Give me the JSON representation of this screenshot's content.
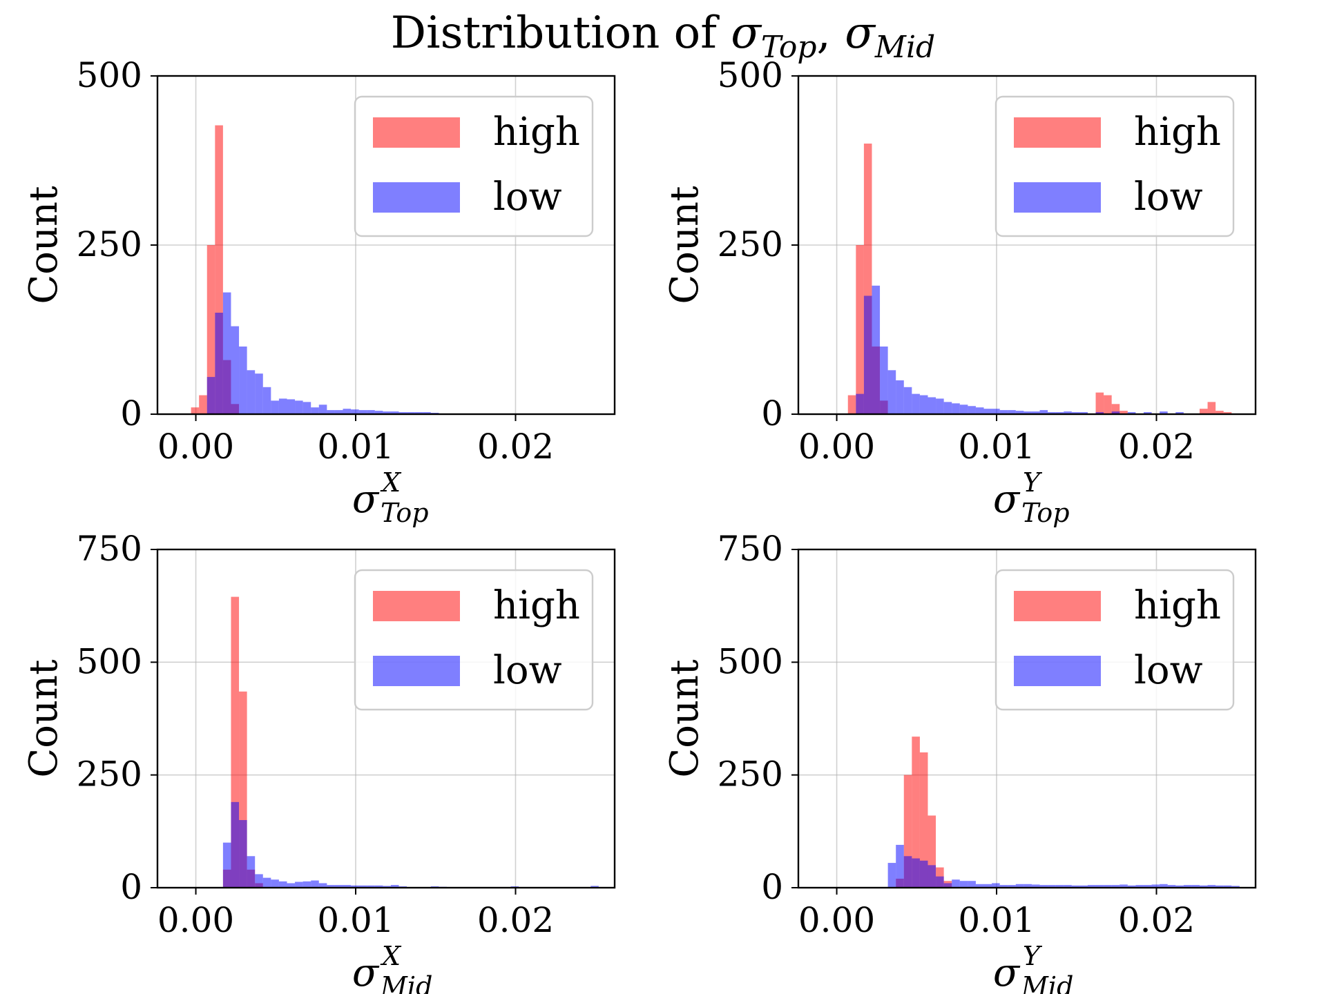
{
  "title": {
    "prefix": "Distribution of ",
    "sym1": "σ",
    "sub1": "Top",
    "sep": ", ",
    "sym2": "σ",
    "sub2": "Mid"
  },
  "colors": {
    "high": "#ff0000",
    "low": "#0000ff",
    "alpha": 0.5,
    "grid": "#b0b0b0"
  },
  "chart_data": [
    {
      "type": "bar",
      "xlabel": {
        "sym": "σ",
        "sup": "X",
        "sub": "Top"
      },
      "ylabel": "Count",
      "xlim": [
        -0.0024,
        0.0262
      ],
      "ylim": [
        0,
        500
      ],
      "xticks": [
        0.0,
        0.01,
        0.02
      ],
      "xtick_labels": [
        "0.00",
        "0.01",
        "0.02"
      ],
      "yticks": [
        0,
        250,
        500
      ],
      "ytick_labels": [
        "0",
        "250",
        "500"
      ],
      "grid": true,
      "legend": {
        "placement": "top-right",
        "entries": [
          "high",
          "low"
        ]
      },
      "bin_width": 0.0005,
      "series": [
        {
          "name": "high",
          "x": [
            -0.0003,
            0.0002,
            0.0007,
            0.0012,
            0.0017,
            0.0022
          ],
          "values": [
            10,
            28,
            250,
            427,
            80,
            15
          ]
        },
        {
          "name": "low",
          "x": [
            0.0007,
            0.0012,
            0.0017,
            0.0022,
            0.0027,
            0.0032,
            0.0037,
            0.0042,
            0.0047,
            0.0052,
            0.0057,
            0.0062,
            0.0067,
            0.0072,
            0.0077,
            0.0082,
            0.0087,
            0.0092,
            0.0097,
            0.0102,
            0.0107,
            0.0112,
            0.0117,
            0.0122,
            0.0127,
            0.0132,
            0.0137,
            0.0142,
            0.0147
          ],
          "values": [
            55,
            150,
            180,
            130,
            100,
            65,
            60,
            40,
            20,
            23,
            22,
            20,
            18,
            10,
            14,
            6,
            6,
            8,
            7,
            6,
            6,
            5,
            4,
            4,
            3,
            3,
            3,
            3,
            2
          ]
        }
      ]
    },
    {
      "type": "bar",
      "xlabel": {
        "sym": "σ",
        "sup": "Y",
        "sub": "Top"
      },
      "ylabel": "Count",
      "xlim": [
        -0.0024,
        0.0262
      ],
      "ylim": [
        0,
        500
      ],
      "xticks": [
        0.0,
        0.01,
        0.02
      ],
      "xtick_labels": [
        "0.00",
        "0.01",
        "0.02"
      ],
      "yticks": [
        0,
        250,
        500
      ],
      "ytick_labels": [
        "0",
        "250",
        "500"
      ],
      "grid": true,
      "legend": {
        "placement": "top-right",
        "entries": [
          "high",
          "low"
        ]
      },
      "bin_width": 0.0005,
      "series": [
        {
          "name": "high",
          "x": [
            0.0007,
            0.0012,
            0.0017,
            0.0022,
            0.0027,
            0.0162,
            0.0167,
            0.0172,
            0.0177,
            0.0227,
            0.0232,
            0.0237,
            0.0242
          ],
          "values": [
            28,
            250,
            400,
            100,
            20,
            32,
            28,
            15,
            5,
            8,
            18,
            5,
            3
          ]
        },
        {
          "name": "low",
          "x": [
            0.0012,
            0.0017,
            0.0022,
            0.0027,
            0.0032,
            0.0037,
            0.0042,
            0.0047,
            0.0052,
            0.0057,
            0.0062,
            0.0067,
            0.0072,
            0.0077,
            0.0082,
            0.0087,
            0.0092,
            0.0097,
            0.0102,
            0.0107,
            0.0112,
            0.0117,
            0.0122,
            0.0127,
            0.0132,
            0.0137,
            0.0142,
            0.0147,
            0.0152,
            0.0162,
            0.0172,
            0.0182,
            0.0192,
            0.0202,
            0.0212
          ],
          "values": [
            30,
            175,
            190,
            100,
            65,
            50,
            40,
            30,
            28,
            25,
            23,
            18,
            16,
            14,
            12,
            10,
            8,
            8,
            6,
            6,
            5,
            4,
            4,
            6,
            3,
            3,
            4,
            3,
            3,
            3,
            4,
            3,
            3,
            4,
            3
          ]
        }
      ]
    },
    {
      "type": "bar",
      "xlabel": {
        "sym": "σ",
        "sup": "X",
        "sub": "Mid"
      },
      "ylabel": "Count",
      "xlim": [
        -0.0024,
        0.0262
      ],
      "ylim": [
        0,
        750
      ],
      "xticks": [
        0.0,
        0.01,
        0.02
      ],
      "xtick_labels": [
        "0.00",
        "0.01",
        "0.02"
      ],
      "yticks": [
        0,
        250,
        500,
        750
      ],
      "ytick_labels": [
        "0",
        "250",
        "500",
        "750"
      ],
      "grid": true,
      "legend": {
        "placement": "top-right",
        "entries": [
          "high",
          "low"
        ]
      },
      "bin_width": 0.0005,
      "series": [
        {
          "name": "high",
          "x": [
            0.0017,
            0.0022,
            0.0027,
            0.0032,
            0.0037
          ],
          "values": [
            40,
            645,
            435,
            40,
            10
          ]
        },
        {
          "name": "low",
          "x": [
            0.0017,
            0.0022,
            0.0027,
            0.0032,
            0.0037,
            0.0042,
            0.0047,
            0.0052,
            0.0057,
            0.0062,
            0.0067,
            0.0072,
            0.0077,
            0.0082,
            0.0087,
            0.0092,
            0.0097,
            0.0102,
            0.0107,
            0.0112,
            0.0117,
            0.0122,
            0.0127,
            0.0147,
            0.0152,
            0.0197,
            0.0247
          ],
          "values": [
            100,
            190,
            150,
            70,
            30,
            22,
            18,
            14,
            10,
            13,
            14,
            16,
            10,
            6,
            6,
            6,
            5,
            5,
            5,
            5,
            4,
            6,
            3,
            3,
            2,
            3,
            4
          ]
        }
      ]
    },
    {
      "type": "bar",
      "xlabel": {
        "sym": "σ",
        "sup": "Y",
        "sub": "Mid"
      },
      "ylabel": "Count",
      "xlim": [
        -0.0024,
        0.0262
      ],
      "ylim": [
        0,
        750
      ],
      "xticks": [
        0.0,
        0.01,
        0.02
      ],
      "xtick_labels": [
        "0.00",
        "0.01",
        "0.02"
      ],
      "yticks": [
        0,
        250,
        500,
        750
      ],
      "ytick_labels": [
        "0",
        "250",
        "500",
        "750"
      ],
      "grid": true,
      "legend": {
        "placement": "top-right",
        "entries": [
          "high",
          "low"
        ]
      },
      "bin_width": 0.0005,
      "series": [
        {
          "name": "high",
          "x": [
            0.0037,
            0.0042,
            0.0047,
            0.0052,
            0.0057,
            0.0062,
            0.0067
          ],
          "values": [
            20,
            250,
            335,
            300,
            160,
            45,
            15
          ]
        },
        {
          "name": "low",
          "x": [
            0.0032,
            0.0037,
            0.0042,
            0.0047,
            0.0052,
            0.0057,
            0.0062,
            0.0067,
            0.0072,
            0.0077,
            0.0082,
            0.0087,
            0.0092,
            0.0097,
            0.0102,
            0.0107,
            0.0112,
            0.0117,
            0.0122,
            0.0127,
            0.0132,
            0.0137,
            0.0142,
            0.0147,
            0.0152,
            0.0157,
            0.0162,
            0.0167,
            0.0172,
            0.0177,
            0.0182,
            0.0187,
            0.0192,
            0.0197,
            0.0202,
            0.0207,
            0.0212,
            0.0217,
            0.0222,
            0.0227,
            0.0232,
            0.0237,
            0.0242,
            0.0247
          ],
          "values": [
            55,
            95,
            70,
            65,
            60,
            50,
            25,
            10,
            18,
            15,
            15,
            8,
            8,
            10,
            6,
            6,
            8,
            8,
            7,
            6,
            6,
            6,
            6,
            5,
            5,
            6,
            6,
            6,
            6,
            7,
            5,
            6,
            6,
            7,
            8,
            6,
            5,
            6,
            6,
            5,
            6,
            5,
            5,
            4
          ]
        }
      ]
    }
  ]
}
